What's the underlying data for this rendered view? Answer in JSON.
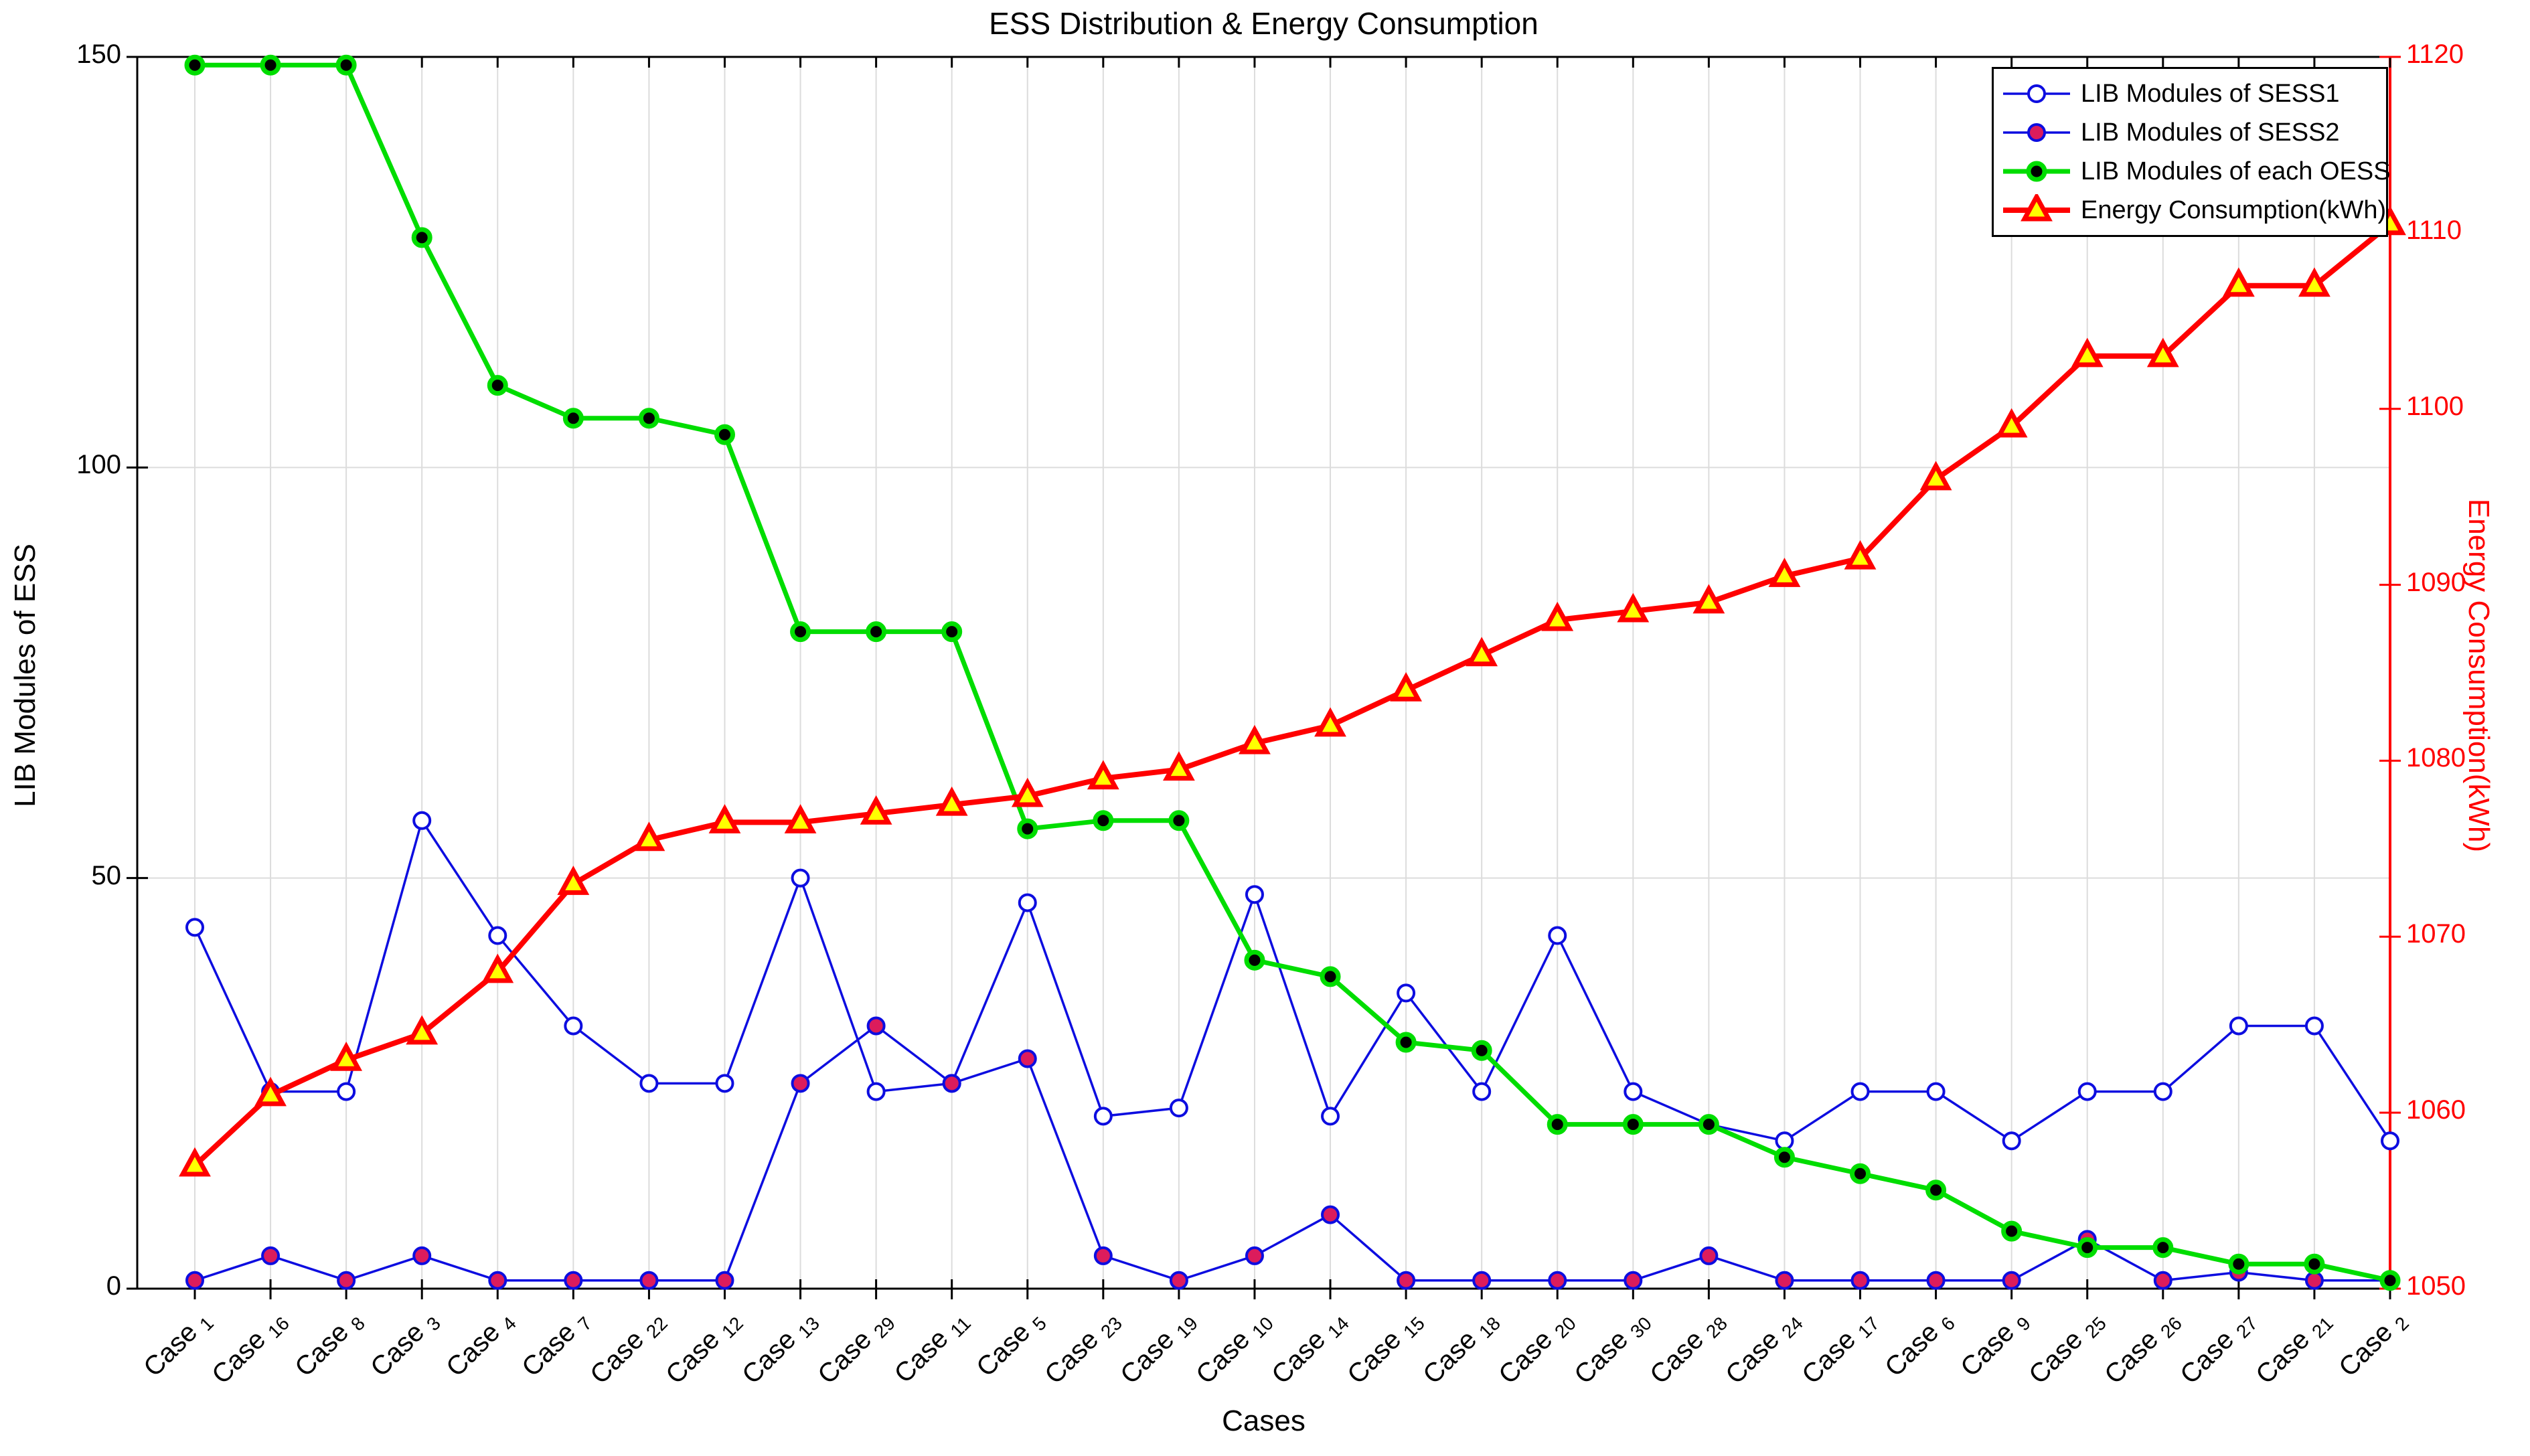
{
  "title": "ESS Distribution & Energy Consumption",
  "chart_data": {
    "type": "line",
    "title": "ESS Distribution & Energy Consumption",
    "xlabel": "Cases",
    "ylabel_left": "LIB Modules of ESS",
    "ylabel_right": "Energy Consumption(kWh)",
    "category_prefix": "Case",
    "categories": [
      "1",
      "16",
      "8",
      "3",
      "4",
      "7",
      "22",
      "12",
      "13",
      "29",
      "11",
      "5",
      "23",
      "19",
      "10",
      "14",
      "15",
      "18",
      "20",
      "30",
      "28",
      "24",
      "17",
      "6",
      "9",
      "25",
      "26",
      "27",
      "21",
      "2"
    ],
    "ylim_left": [
      0,
      150
    ],
    "ylim_right": [
      1050,
      1120
    ],
    "y_left_ticks": [
      0,
      50,
      100,
      150
    ],
    "y_right_ticks": [
      1050,
      1060,
      1070,
      1080,
      1090,
      1100,
      1110,
      1120
    ],
    "grid_horizontal_values": [
      50,
      100
    ],
    "grid_on": true,
    "legend_position": "top-right",
    "series": [
      {
        "name": "LIB Modules of SESS1",
        "axis": "left",
        "color": "#0d0de0",
        "marker": "circle",
        "marker_fill": "#ffffff",
        "line_width": 3.5,
        "values": [
          44,
          24,
          24,
          57,
          43,
          32,
          25,
          25,
          50,
          24,
          25,
          47,
          21,
          22,
          48,
          21,
          36,
          24,
          43,
          24,
          20,
          18,
          24,
          24,
          18,
          24,
          24,
          32,
          32,
          18
        ]
      },
      {
        "name": "LIB Modules of SESS2",
        "axis": "left",
        "color": "#0d0de0",
        "marker": "circle",
        "marker_fill": "#dc1c5c",
        "line_width": 3.5,
        "values": [
          1,
          4,
          1,
          4,
          1,
          1,
          1,
          1,
          25,
          32,
          25,
          28,
          4,
          1,
          4,
          9,
          1,
          1,
          1,
          1,
          4,
          1,
          1,
          1,
          1,
          6,
          1,
          2,
          1,
          1
        ]
      },
      {
        "name": "LIB Modules of each OESS",
        "axis": "left",
        "color": "#00dd00",
        "marker": "circle",
        "marker_fill": "#000000",
        "line_width": 7,
        "values": [
          149,
          149,
          149,
          128,
          110,
          106,
          106,
          104,
          80,
          80,
          80,
          56,
          57,
          57,
          40,
          38,
          30,
          29,
          20,
          20,
          20,
          16,
          14,
          12,
          7,
          5,
          5,
          3,
          3,
          1
        ]
      },
      {
        "name": "Energy Consumption(kWh)",
        "axis": "right",
        "color": "#ff0000",
        "marker": "triangle",
        "marker_fill": "#ffff00",
        "line_width": 8,
        "values": [
          1057,
          1061,
          1063,
          1064.5,
          1068,
          1073,
          1075.5,
          1076.5,
          1076.5,
          1077,
          1077.5,
          1078,
          1079,
          1079.5,
          1081,
          1082,
          1084,
          1086,
          1088,
          1088.5,
          1089,
          1090.5,
          1091.5,
          1096,
          1099,
          1103,
          1103,
          1107,
          1107,
          1110.5
        ]
      }
    ]
  },
  "colors": {
    "grid": "#dcdcdc",
    "spine": "#000000",
    "right_axis": "#ff0000",
    "background": "#ffffff"
  }
}
